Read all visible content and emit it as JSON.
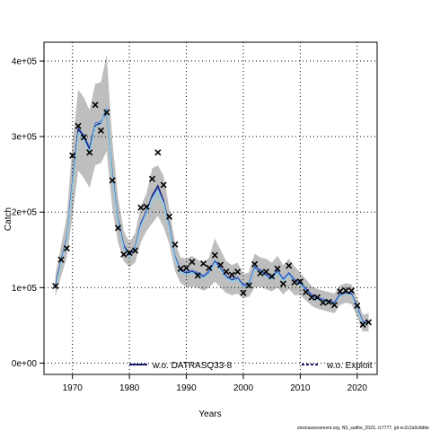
{
  "chart_data": {
    "type": "line",
    "title": "",
    "xlabel": "Years",
    "ylabel": "Catch",
    "xlim": [
      1965,
      2023.5
    ],
    "ylim": [
      -15000,
      425000
    ],
    "x_ticks": [
      1970,
      1980,
      1990,
      2000,
      2010,
      2020
    ],
    "x_tick_labels": [
      "1970",
      "1980",
      "1990",
      "2000",
      "2010",
      "2020"
    ],
    "y_ticks": [
      0,
      100000,
      200000,
      300000,
      400000
    ],
    "y_tick_labels": [
      "0e+00",
      "1e+05",
      "2e+05",
      "3e+05",
      "4e+05"
    ],
    "grid": true,
    "legend_position": "bottom",
    "colors": {
      "band": "#bebebe",
      "series_dark": "#191970",
      "series_light": "#87ceeb",
      "series_mid": "#4169e1",
      "observed": "#000000"
    },
    "years": [
      1967,
      1968,
      1969,
      1970,
      1971,
      1972,
      1973,
      1974,
      1975,
      1976,
      1977,
      1978,
      1979,
      1980,
      1981,
      1982,
      1983,
      1984,
      1985,
      1986,
      1987,
      1988,
      1989,
      1990,
      1991,
      1992,
      1993,
      1994,
      1995,
      1996,
      1997,
      1998,
      1999,
      2000,
      2001,
      2002,
      2003,
      2004,
      2005,
      2006,
      2007,
      2008,
      2009,
      2010,
      2011,
      2012,
      2013,
      2014,
      2015,
      2016,
      2017,
      2018,
      2019,
      2020,
      2021,
      2022
    ],
    "band_lower": [
      88000,
      115000,
      140000,
      195000,
      255000,
      245000,
      232000,
      262000,
      265000,
      280000,
      205000,
      160000,
      135000,
      127000,
      133000,
      160000,
      175000,
      185000,
      195000,
      180000,
      158000,
      122000,
      106000,
      101000,
      101000,
      100000,
      96000,
      100000,
      108000,
      100000,
      93000,
      90000,
      92000,
      86000,
      88000,
      100000,
      101000,
      98000,
      95000,
      100000,
      91000,
      98000,
      90000,
      90000,
      83000,
      76000,
      72000,
      70000,
      68000,
      66000,
      77000,
      80000,
      78000,
      61000,
      42000,
      42000
    ],
    "band_upper": [
      118000,
      155000,
      195000,
      290000,
      362000,
      352000,
      335000,
      370000,
      372000,
      408000,
      295000,
      220000,
      175000,
      160000,
      172000,
      208000,
      225000,
      258000,
      262000,
      248000,
      205000,
      160000,
      140000,
      138000,
      142000,
      137000,
      132000,
      140000,
      165000,
      150000,
      135000,
      130000,
      133000,
      118000,
      120000,
      145000,
      140000,
      138000,
      133000,
      142000,
      130000,
      138000,
      128000,
      120000,
      111000,
      102000,
      98000,
      96000,
      94000,
      92000,
      103000,
      106000,
      104000,
      85000,
      64000,
      66000
    ],
    "observed": [
      102000,
      137000,
      152000,
      275000,
      314000,
      299000,
      279000,
      342000,
      308000,
      332000,
      242000,
      179000,
      144000,
      146000,
      149000,
      206000,
      207000,
      244000,
      279000,
      236000,
      194000,
      157000,
      125000,
      126000,
      134000,
      116000,
      132000,
      126000,
      143000,
      130000,
      121000,
      117000,
      121000,
      93000,
      103000,
      131000,
      119000,
      121000,
      115000,
      125000,
      105000,
      129000,
      107000,
      108000,
      94000,
      87000,
      87000,
      80000,
      81000,
      77000,
      95000,
      96000,
      96000,
      76000,
      51000,
      54000
    ],
    "series": [
      {
        "name": "w.o. DATRASQ33-8",
        "style": "solid",
        "values": [
          103000,
          135000,
          165000,
          240000,
          310000,
          300000,
          283000,
          315000,
          318000,
          332000,
          250000,
          190000,
          155000,
          143000,
          152000,
          184000,
          200000,
          222000,
          235000,
          215000,
          182000,
          140000,
          122000,
          119000,
          121000,
          118000,
          114000,
          120000,
          134000,
          125000,
          114000,
          110000,
          112000,
          102000,
          104000,
          126000,
          122000,
          116000,
          112000,
          121000,
          110000,
          118000,
          109000,
          105000,
          97000,
          89000,
          85000,
          83000,
          81000,
          79000,
          90000,
          93000,
          91000,
          73000,
          53000,
          54000
        ]
      },
      {
        "name": "w.o. Exploit",
        "style": "dashed",
        "values": [
          101000,
          132000,
          163000,
          238000,
          306000,
          295000,
          280000,
          316000,
          320000,
          340000,
          246000,
          186000,
          152000,
          141000,
          150000,
          181000,
          197000,
          212000,
          222000,
          209000,
          178000,
          137000,
          120000,
          117000,
          119000,
          116000,
          112000,
          118000,
          132000,
          123000,
          112000,
          108000,
          110000,
          101000,
          103000,
          124000,
          120000,
          115000,
          111000,
          120000,
          109000,
          117000,
          108000,
          104000,
          96000,
          88000,
          84000,
          82000,
          80000,
          78000,
          89000,
          92000,
          90000,
          72000,
          52000,
          53000
        ]
      }
    ],
    "extra_lines": [
      {
        "values": [
          104000,
          136000,
          167000,
          242000,
          312000,
          302000,
          286000,
          318000,
          320000,
          337000,
          252000,
          192000,
          157000,
          145000,
          154000,
          186000,
          202000,
          220000,
          232000,
          214000,
          184000,
          142000,
          124000,
          121000,
          123000,
          120000,
          116000,
          122000,
          136000,
          127000,
          116000,
          112000,
          114000,
          104000,
          106000,
          128000,
          124000,
          118000,
          114000,
          123000,
          112000,
          120000,
          111000,
          107000,
          99000,
          91000,
          87000,
          85000,
          83000,
          81000,
          92000,
          95000,
          93000,
          75000,
          55000,
          56000
        ]
      },
      {
        "values": [
          100000,
          133000,
          164000,
          236000,
          304000,
          296000,
          279000,
          312000,
          316000,
          335000,
          247000,
          188000,
          153000,
          141000,
          151000,
          182000,
          199000,
          218000,
          228000,
          212000,
          180000,
          139000,
          121000,
          118000,
          120000,
          117000,
          113000,
          119000,
          133000,
          124000,
          113000,
          109000,
          111000,
          101000,
          103000,
          125000,
          121000,
          115000,
          111000,
          120000,
          109000,
          117000,
          108000,
          104000,
          96000,
          88000,
          84000,
          82000,
          80000,
          78000,
          89000,
          92000,
          90000,
          72000,
          52000,
          53000
        ]
      }
    ]
  },
  "credit": "stockassessment.org, NS_saithe_2023, r17777, git ec2c2a0c8dde"
}
